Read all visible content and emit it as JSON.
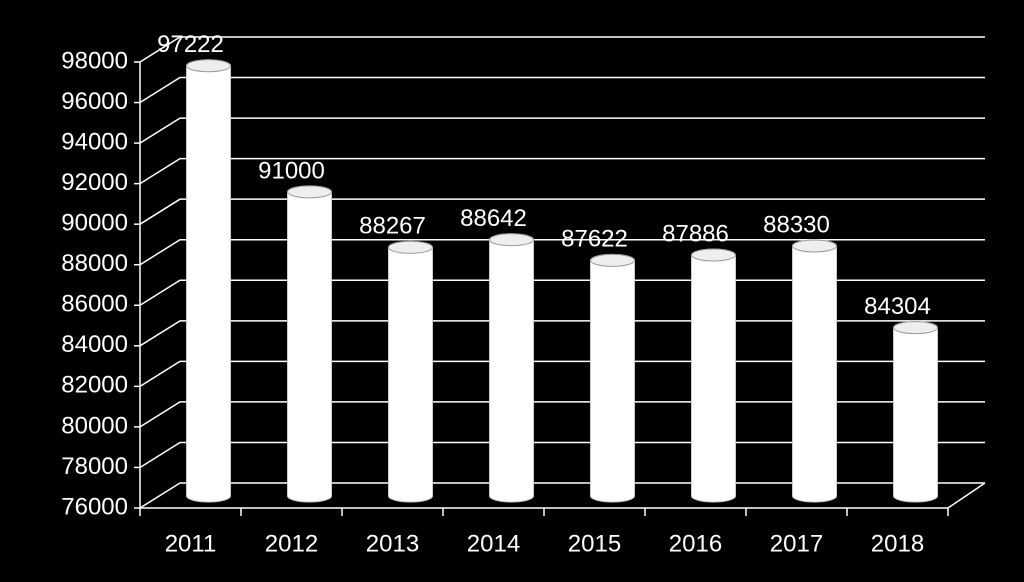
{
  "chart_data": {
    "type": "bar3d",
    "categories": [
      "2011",
      "2012",
      "2013",
      "2014",
      "2015",
      "2016",
      "2017",
      "2018"
    ],
    "values": [
      97222,
      91000,
      88267,
      88642,
      87622,
      87886,
      88330,
      84304
    ],
    "color": "#ffffff",
    "ylim": [
      76000,
      98000
    ],
    "yticks": [
      76000,
      78000,
      80000,
      82000,
      84000,
      86000,
      88000,
      90000,
      92000,
      94000,
      96000,
      98000
    ],
    "grid": true
  }
}
